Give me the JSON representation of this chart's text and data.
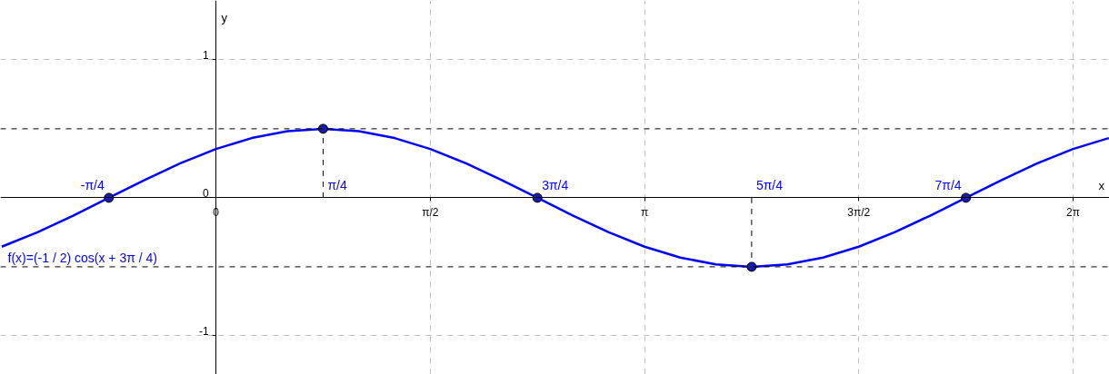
{
  "chart_data": {
    "type": "line",
    "xlabel": "x",
    "ylabel": "y",
    "xlim": [
      -1.58,
      6.55
    ],
    "ylim": [
      -1.28,
      1.43
    ],
    "xticks": [
      {
        "value": 0,
        "label": "0"
      },
      {
        "value": 1.5708,
        "label": "π/2"
      },
      {
        "value": 3.1416,
        "label": "π"
      },
      {
        "value": 4.7124,
        "label": "3π/2"
      },
      {
        "value": 6.2832,
        "label": "2π"
      }
    ],
    "yticks": [
      {
        "value": -1,
        "label": "-1"
      },
      {
        "value": 0,
        "label": "0"
      },
      {
        "value": 1,
        "label": "1"
      }
    ],
    "grid": true,
    "ref_lines": [
      {
        "axis": "y",
        "value": 0.5,
        "color": "#000000",
        "line_style": "dashed"
      },
      {
        "axis": "y",
        "value": -0.5,
        "color": "#000000",
        "line_style": "dashed"
      }
    ],
    "annotations": [
      {
        "text": "-π/4",
        "x": -0.7854,
        "y": 0
      },
      {
        "text": "π/4",
        "x": 0.7854,
        "y": 0
      },
      {
        "text": "3π/4",
        "x": 2.3562,
        "y": 0
      },
      {
        "text": "5π/4",
        "x": 3.927,
        "y": 0
      },
      {
        "text": "7π/4",
        "x": 5.4978,
        "y": 0
      }
    ],
    "series": [
      {
        "name": "f(x)=(-1 / 2) cos(x + 3π / 4)",
        "color": "#0000ff",
        "line_style": "solid",
        "x": [
          -1.5708,
          -1.309,
          -1.0472,
          -0.7854,
          -0.5236,
          -0.2618,
          0,
          0.2618,
          0.5236,
          0.7854,
          1.0472,
          1.309,
          1.5708,
          1.8326,
          2.0944,
          2.3562,
          2.618,
          2.8798,
          3.1416,
          3.4034,
          3.6652,
          3.927,
          4.1888,
          4.4506,
          4.7124,
          4.9742,
          5.236,
          5.4978,
          5.7596,
          6.0214,
          6.2832,
          6.545
        ],
        "values": [
          -0.354,
          -0.25,
          -0.129,
          0,
          0.129,
          0.25,
          0.354,
          0.433,
          0.483,
          0.5,
          0.483,
          0.433,
          0.354,
          0.25,
          0.129,
          0,
          -0.129,
          -0.25,
          -0.354,
          -0.433,
          -0.483,
          -0.5,
          -0.483,
          -0.433,
          -0.354,
          -0.25,
          -0.129,
          0,
          0.129,
          0.25,
          0.354,
          0.433
        ]
      },
      {
        "type": "line",
        "color": "#000000",
        "line_style": "dashed",
        "x": [
          0.7854,
          0.7854
        ],
        "values": [
          0,
          0.5
        ]
      },
      {
        "type": "line",
        "color": "#000000",
        "line_style": "dashed",
        "x": [
          3.927,
          3.927
        ],
        "values": [
          0,
          -0.5
        ]
      },
      {
        "type": "scatter",
        "color": "#1a1aa6",
        "marker": "circle",
        "x": [
          -0.7854,
          0.7854,
          2.3562,
          3.927,
          5.4978
        ],
        "values": [
          0,
          0.5,
          0,
          -0.5,
          0
        ]
      }
    ]
  }
}
